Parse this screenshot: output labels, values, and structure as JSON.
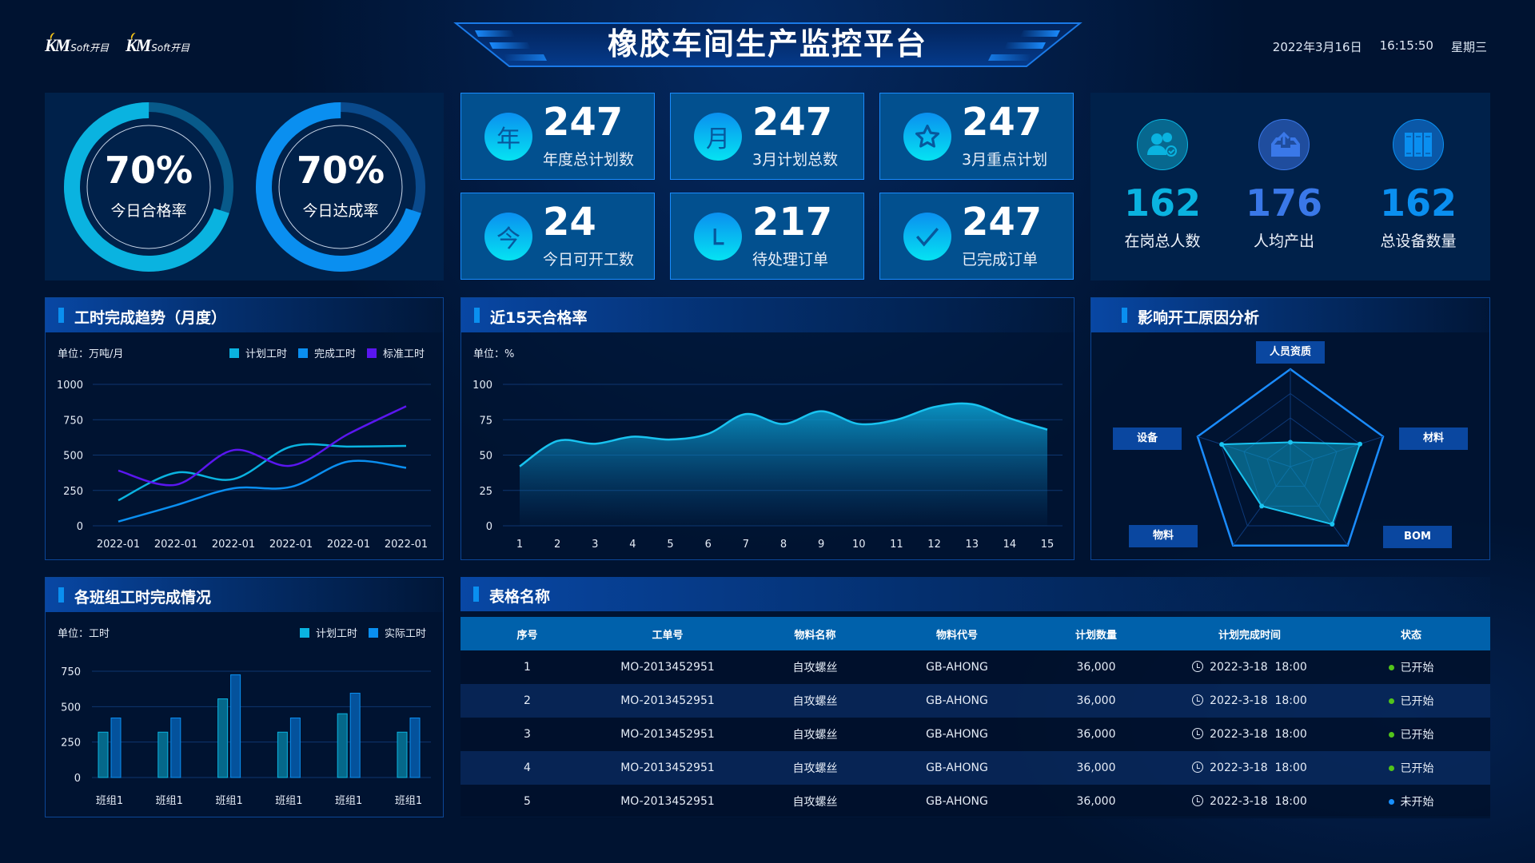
{
  "header": {
    "title": "橡胶车间生产监控平台",
    "date": "2022年3月16日",
    "time": "16:15:50",
    "weekday": "星期三",
    "logos": [
      {
        "mark": "KM",
        "text": "Soft开目"
      },
      {
        "mark": "KM",
        "text": "Soft开目"
      }
    ]
  },
  "gauges": [
    {
      "value": 70,
      "display": "70%",
      "label": "今日合格率",
      "color": "#0ab3e0",
      "track_color": "#085a8a"
    },
    {
      "value": 70,
      "display": "70%",
      "label": "今日达成率",
      "color": "#0a8ff0",
      "track_color": "#0a4a8c"
    }
  ],
  "stat_cards": [
    {
      "icon": "year-icon",
      "glyph": "年",
      "value": "247",
      "label": "年度总计划数"
    },
    {
      "icon": "month-icon",
      "glyph": "月",
      "value": "247",
      "label": "3月计划总数"
    },
    {
      "icon": "star-icon",
      "value": "247",
      "label": "3月重点计划"
    },
    {
      "icon": "today-icon",
      "glyph": "今",
      "value": "24",
      "label": "今日可开工数"
    },
    {
      "icon": "clock-hands-icon",
      "value": "217",
      "label": "待处理订单"
    },
    {
      "icon": "check-icon",
      "value": "247",
      "label": "已完成订单"
    }
  ],
  "summary": [
    {
      "icon": "users-icon",
      "value": "162",
      "label": "在岗总人数",
      "color": "#0ab3e0"
    },
    {
      "icon": "outbox-upload-icon",
      "value": "176",
      "label": "人均产出",
      "color": "#3a78e8"
    },
    {
      "icon": "server-rack-icon",
      "value": "162",
      "label": "总设备数量",
      "color": "#0a8ff0"
    }
  ],
  "panels": {
    "trend": "工时完成趋势（月度）",
    "pass_rate": "近15天合格率",
    "reasons": "影响开工原因分析",
    "teams": "各班组工时完成情况",
    "table": "表格名称"
  },
  "chart_data": [
    {
      "type": "line",
      "unit_label": "单位：万吨/月",
      "categories": [
        "2022-01",
        "2022-01",
        "2022-01",
        "2022-01",
        "2022-01",
        "2022-01"
      ],
      "ylim": [
        0,
        1000
      ],
      "y_ticks": [
        0,
        250,
        500,
        750,
        1000
      ],
      "grid": true,
      "legend": "top-right",
      "series": [
        {
          "name": "计划工时",
          "color": "#0ab3e0",
          "values": [
            180,
            375,
            330,
            560,
            560,
            565
          ]
        },
        {
          "name": "完成工时",
          "color": "#0a8ff0",
          "values": [
            30,
            145,
            265,
            275,
            455,
            410
          ]
        },
        {
          "name": "标准工时",
          "color": "#5a16f0",
          "values": [
            390,
            290,
            535,
            425,
            650,
            845
          ]
        }
      ]
    },
    {
      "type": "area",
      "unit_label": "单位：%",
      "x": [
        1,
        2,
        3,
        4,
        5,
        6,
        7,
        8,
        9,
        10,
        11,
        12,
        13,
        14,
        15
      ],
      "ylim": [
        0,
        100
      ],
      "y_ticks": [
        0,
        25,
        50,
        75,
        100
      ],
      "grid": true,
      "series": [
        {
          "color": "#19c3f0",
          "values": [
            42,
            60,
            58,
            63,
            61,
            65,
            79,
            72,
            81,
            72,
            75,
            84,
            86,
            76,
            68
          ]
        }
      ]
    },
    {
      "type": "radar",
      "axes": [
        "人员资质",
        "材料",
        "BOM",
        "物料",
        "设备"
      ],
      "max": 100,
      "values": [
        25,
        75,
        73,
        50,
        74
      ],
      "color": "#19c3f0"
    },
    {
      "type": "bar",
      "unit_label": "单位：工时",
      "categories": [
        "班组1",
        "班组1",
        "班组1",
        "班组1",
        "班组1",
        "班组1"
      ],
      "ylim": [
        0,
        750
      ],
      "y_ticks": [
        0,
        250,
        500,
        750
      ],
      "grid": true,
      "legend": "top-right",
      "series": [
        {
          "name": "计划工时",
          "color": "#0ab3e0",
          "values": [
            320,
            320,
            555,
            320,
            450,
            320
          ]
        },
        {
          "name": "实际工时",
          "color": "#0a8ff0",
          "values": [
            420,
            420,
            725,
            420,
            595,
            420
          ]
        }
      ]
    }
  ],
  "table": {
    "columns": [
      "序号",
      "工单号",
      "物料名称",
      "物料代号",
      "计划数量",
      "计划完成时间",
      "状态"
    ],
    "rows": [
      {
        "no": "1",
        "order": "MO-2013452951",
        "material": "自攻螺丝",
        "code": "GB-AHONG",
        "qty": "36,000",
        "due": "2022-3-18  18:00",
        "status": "已开始",
        "status_color": "#52c41a"
      },
      {
        "no": "2",
        "order": "MO-2013452951",
        "material": "自攻螺丝",
        "code": "GB-AHONG",
        "qty": "36,000",
        "due": "2022-3-18  18:00",
        "status": "已开始",
        "status_color": "#52c41a"
      },
      {
        "no": "3",
        "order": "MO-2013452951",
        "material": "自攻螺丝",
        "code": "GB-AHONG",
        "qty": "36,000",
        "due": "2022-3-18  18:00",
        "status": "已开始",
        "status_color": "#52c41a"
      },
      {
        "no": "4",
        "order": "MO-2013452951",
        "material": "自攻螺丝",
        "code": "GB-AHONG",
        "qty": "36,000",
        "due": "2022-3-18  18:00",
        "status": "已开始",
        "status_color": "#52c41a"
      },
      {
        "no": "5",
        "order": "MO-2013452951",
        "material": "自攻螺丝",
        "code": "GB-AHONG",
        "qty": "36,000",
        "due": "2022-3-18  18:00",
        "status": "未开始",
        "status_color": "#1890ff"
      }
    ]
  }
}
